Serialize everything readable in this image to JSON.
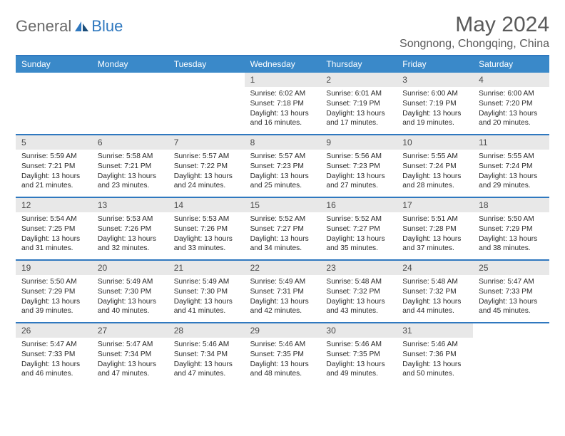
{
  "logo": {
    "general": "General",
    "blue": "Blue"
  },
  "title": "May 2024",
  "location": "Songnong, Chongqing, China",
  "weekdays": [
    "Sunday",
    "Monday",
    "Tuesday",
    "Wednesday",
    "Thursday",
    "Friday",
    "Saturday"
  ],
  "colors": {
    "header_bar": "#3a89c9",
    "divider": "#2f78bf",
    "daynum_bg": "#e8e8e8",
    "logo_gray": "#6a6a6a",
    "logo_blue": "#2f78bf",
    "title_gray": "#5a5a5a"
  },
  "weeks": [
    [
      null,
      null,
      null,
      {
        "num": "1",
        "sunrise": "Sunrise: 6:02 AM",
        "sunset": "Sunset: 7:18 PM",
        "daylight1": "Daylight: 13 hours",
        "daylight2": "and 16 minutes."
      },
      {
        "num": "2",
        "sunrise": "Sunrise: 6:01 AM",
        "sunset": "Sunset: 7:19 PM",
        "daylight1": "Daylight: 13 hours",
        "daylight2": "and 17 minutes."
      },
      {
        "num": "3",
        "sunrise": "Sunrise: 6:00 AM",
        "sunset": "Sunset: 7:19 PM",
        "daylight1": "Daylight: 13 hours",
        "daylight2": "and 19 minutes."
      },
      {
        "num": "4",
        "sunrise": "Sunrise: 6:00 AM",
        "sunset": "Sunset: 7:20 PM",
        "daylight1": "Daylight: 13 hours",
        "daylight2": "and 20 minutes."
      }
    ],
    [
      {
        "num": "5",
        "sunrise": "Sunrise: 5:59 AM",
        "sunset": "Sunset: 7:21 PM",
        "daylight1": "Daylight: 13 hours",
        "daylight2": "and 21 minutes."
      },
      {
        "num": "6",
        "sunrise": "Sunrise: 5:58 AM",
        "sunset": "Sunset: 7:21 PM",
        "daylight1": "Daylight: 13 hours",
        "daylight2": "and 23 minutes."
      },
      {
        "num": "7",
        "sunrise": "Sunrise: 5:57 AM",
        "sunset": "Sunset: 7:22 PM",
        "daylight1": "Daylight: 13 hours",
        "daylight2": "and 24 minutes."
      },
      {
        "num": "8",
        "sunrise": "Sunrise: 5:57 AM",
        "sunset": "Sunset: 7:23 PM",
        "daylight1": "Daylight: 13 hours",
        "daylight2": "and 25 minutes."
      },
      {
        "num": "9",
        "sunrise": "Sunrise: 5:56 AM",
        "sunset": "Sunset: 7:23 PM",
        "daylight1": "Daylight: 13 hours",
        "daylight2": "and 27 minutes."
      },
      {
        "num": "10",
        "sunrise": "Sunrise: 5:55 AM",
        "sunset": "Sunset: 7:24 PM",
        "daylight1": "Daylight: 13 hours",
        "daylight2": "and 28 minutes."
      },
      {
        "num": "11",
        "sunrise": "Sunrise: 5:55 AM",
        "sunset": "Sunset: 7:24 PM",
        "daylight1": "Daylight: 13 hours",
        "daylight2": "and 29 minutes."
      }
    ],
    [
      {
        "num": "12",
        "sunrise": "Sunrise: 5:54 AM",
        "sunset": "Sunset: 7:25 PM",
        "daylight1": "Daylight: 13 hours",
        "daylight2": "and 31 minutes."
      },
      {
        "num": "13",
        "sunrise": "Sunrise: 5:53 AM",
        "sunset": "Sunset: 7:26 PM",
        "daylight1": "Daylight: 13 hours",
        "daylight2": "and 32 minutes."
      },
      {
        "num": "14",
        "sunrise": "Sunrise: 5:53 AM",
        "sunset": "Sunset: 7:26 PM",
        "daylight1": "Daylight: 13 hours",
        "daylight2": "and 33 minutes."
      },
      {
        "num": "15",
        "sunrise": "Sunrise: 5:52 AM",
        "sunset": "Sunset: 7:27 PM",
        "daylight1": "Daylight: 13 hours",
        "daylight2": "and 34 minutes."
      },
      {
        "num": "16",
        "sunrise": "Sunrise: 5:52 AM",
        "sunset": "Sunset: 7:27 PM",
        "daylight1": "Daylight: 13 hours",
        "daylight2": "and 35 minutes."
      },
      {
        "num": "17",
        "sunrise": "Sunrise: 5:51 AM",
        "sunset": "Sunset: 7:28 PM",
        "daylight1": "Daylight: 13 hours",
        "daylight2": "and 37 minutes."
      },
      {
        "num": "18",
        "sunrise": "Sunrise: 5:50 AM",
        "sunset": "Sunset: 7:29 PM",
        "daylight1": "Daylight: 13 hours",
        "daylight2": "and 38 minutes."
      }
    ],
    [
      {
        "num": "19",
        "sunrise": "Sunrise: 5:50 AM",
        "sunset": "Sunset: 7:29 PM",
        "daylight1": "Daylight: 13 hours",
        "daylight2": "and 39 minutes."
      },
      {
        "num": "20",
        "sunrise": "Sunrise: 5:49 AM",
        "sunset": "Sunset: 7:30 PM",
        "daylight1": "Daylight: 13 hours",
        "daylight2": "and 40 minutes."
      },
      {
        "num": "21",
        "sunrise": "Sunrise: 5:49 AM",
        "sunset": "Sunset: 7:30 PM",
        "daylight1": "Daylight: 13 hours",
        "daylight2": "and 41 minutes."
      },
      {
        "num": "22",
        "sunrise": "Sunrise: 5:49 AM",
        "sunset": "Sunset: 7:31 PM",
        "daylight1": "Daylight: 13 hours",
        "daylight2": "and 42 minutes."
      },
      {
        "num": "23",
        "sunrise": "Sunrise: 5:48 AM",
        "sunset": "Sunset: 7:32 PM",
        "daylight1": "Daylight: 13 hours",
        "daylight2": "and 43 minutes."
      },
      {
        "num": "24",
        "sunrise": "Sunrise: 5:48 AM",
        "sunset": "Sunset: 7:32 PM",
        "daylight1": "Daylight: 13 hours",
        "daylight2": "and 44 minutes."
      },
      {
        "num": "25",
        "sunrise": "Sunrise: 5:47 AM",
        "sunset": "Sunset: 7:33 PM",
        "daylight1": "Daylight: 13 hours",
        "daylight2": "and 45 minutes."
      }
    ],
    [
      {
        "num": "26",
        "sunrise": "Sunrise: 5:47 AM",
        "sunset": "Sunset: 7:33 PM",
        "daylight1": "Daylight: 13 hours",
        "daylight2": "and 46 minutes."
      },
      {
        "num": "27",
        "sunrise": "Sunrise: 5:47 AM",
        "sunset": "Sunset: 7:34 PM",
        "daylight1": "Daylight: 13 hours",
        "daylight2": "and 47 minutes."
      },
      {
        "num": "28",
        "sunrise": "Sunrise: 5:46 AM",
        "sunset": "Sunset: 7:34 PM",
        "daylight1": "Daylight: 13 hours",
        "daylight2": "and 47 minutes."
      },
      {
        "num": "29",
        "sunrise": "Sunrise: 5:46 AM",
        "sunset": "Sunset: 7:35 PM",
        "daylight1": "Daylight: 13 hours",
        "daylight2": "and 48 minutes."
      },
      {
        "num": "30",
        "sunrise": "Sunrise: 5:46 AM",
        "sunset": "Sunset: 7:35 PM",
        "daylight1": "Daylight: 13 hours",
        "daylight2": "and 49 minutes."
      },
      {
        "num": "31",
        "sunrise": "Sunrise: 5:46 AM",
        "sunset": "Sunset: 7:36 PM",
        "daylight1": "Daylight: 13 hours",
        "daylight2": "and 50 minutes."
      },
      null
    ]
  ]
}
